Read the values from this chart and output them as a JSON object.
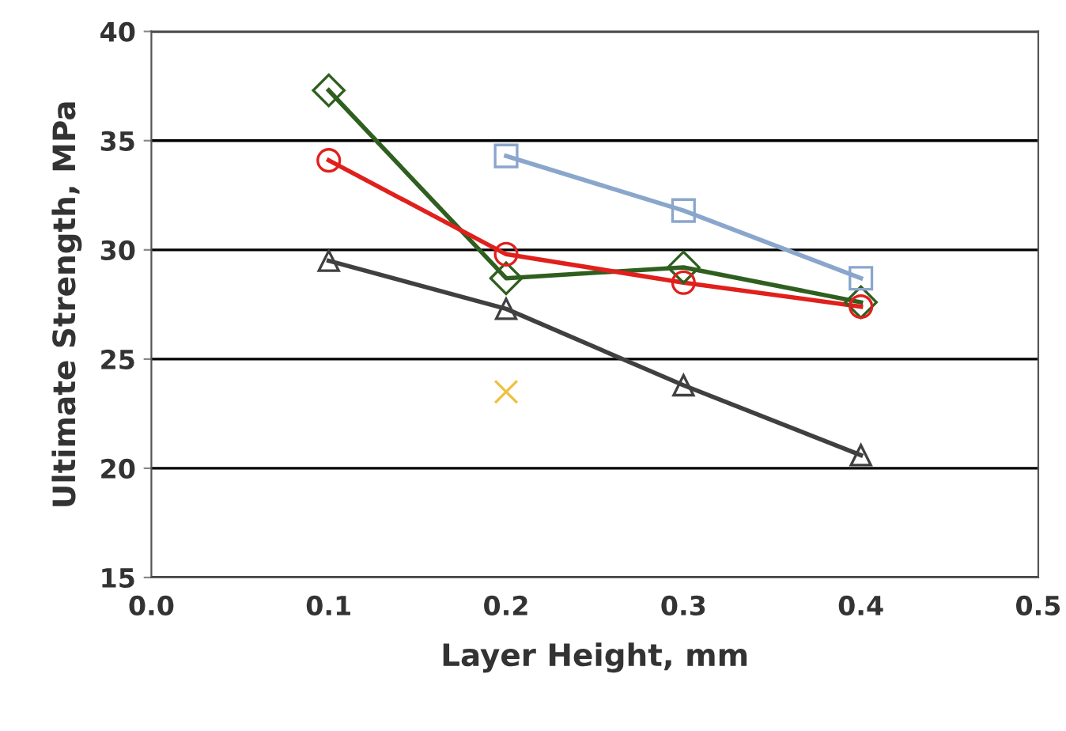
{
  "chart_data": {
    "type": "line",
    "xlabel": "Layer Height, mm",
    "ylabel": "Ultimate Strength, MPa",
    "xlim": [
      0,
      0.5
    ],
    "xticks": [
      {
        "value": 0,
        "label": "0.0"
      },
      0.1,
      0.2,
      0.3,
      0.4,
      0.5
    ],
    "ylim": [
      15,
      40
    ],
    "yticks": [
      15,
      20,
      25,
      30,
      35,
      40
    ],
    "grid": "y",
    "series": [
      {
        "x": [
          0.1,
          0.2,
          0.3,
          0.4
        ],
        "values": [
          37.3,
          28.7,
          29.2,
          27.6
        ],
        "color": "#2f5f1f",
        "marker": "diamond"
      },
      {
        "x": [
          0.1,
          0.2,
          0.3,
          0.4
        ],
        "values": [
          34.1,
          29.8,
          28.5,
          27.4
        ],
        "color": "#e0201c",
        "marker": "circle"
      },
      {
        "x": [
          0.2,
          0.3,
          0.4
        ],
        "values": [
          34.3,
          31.8,
          28.7
        ],
        "color": "#8aa6cc",
        "marker": "square"
      },
      {
        "x": [
          0.1,
          0.2,
          0.3,
          0.4
        ],
        "values": [
          29.5,
          27.3,
          23.8,
          20.6
        ],
        "color": "#404040",
        "marker": "triangle"
      },
      {
        "type": "scatter",
        "x": [
          0.2
        ],
        "values": [
          23.5
        ],
        "color": "#f0c040",
        "marker": "cross"
      }
    ]
  }
}
